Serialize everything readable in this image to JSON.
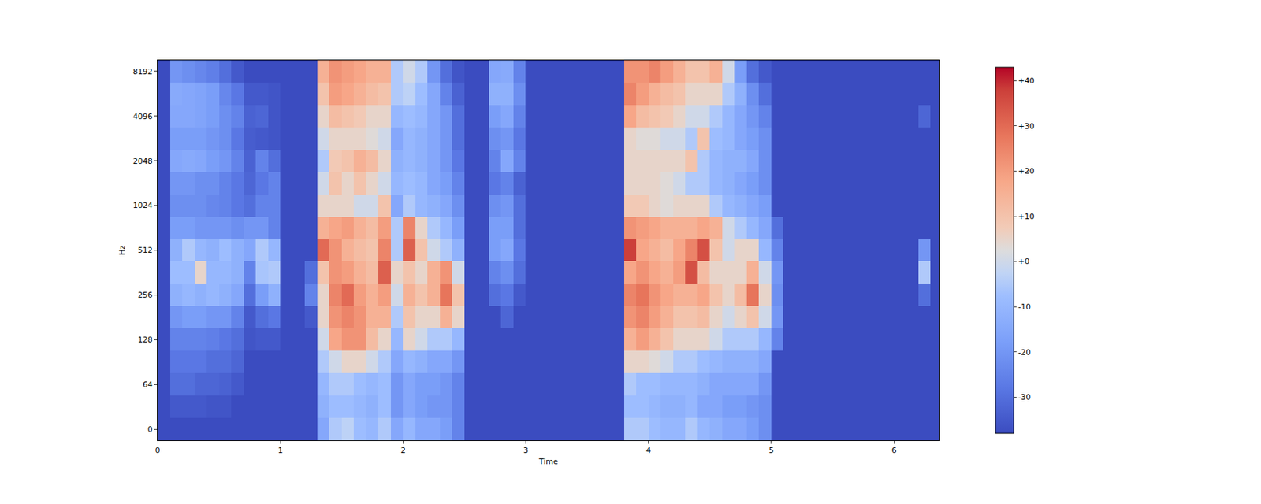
{
  "chart_data": {
    "type": "heatmap",
    "x_label": "Time",
    "y_label": "Hz",
    "xlim": [
      0,
      6.37
    ],
    "xticks": [
      0,
      1,
      2,
      3,
      4,
      5,
      6
    ],
    "yticks": [
      0,
      64,
      128,
      256,
      512,
      1024,
      2048,
      4096,
      8192
    ],
    "x": [
      0.05,
      0.15,
      0.25,
      0.35,
      0.45,
      0.55,
      0.65,
      0.75,
      0.85,
      0.95,
      1.05,
      1.15,
      1.25,
      1.35,
      1.45,
      1.55,
      1.65,
      1.75,
      1.85,
      1.95,
      2.05,
      2.15,
      2.25,
      2.35,
      2.45,
      2.55,
      2.65,
      2.75,
      2.85,
      2.95,
      3.05,
      3.15,
      3.25,
      3.35,
      3.45,
      3.55,
      3.65,
      3.75,
      3.85,
      3.95,
      4.05,
      4.15,
      4.25,
      4.35,
      4.45,
      4.55,
      4.65,
      4.75,
      4.85,
      4.95,
      5.05,
      5.15,
      5.25,
      5.35,
      5.45,
      5.55,
      5.65,
      5.75,
      5.85,
      5.95,
      6.05,
      6.15,
      6.25,
      6.35
    ],
    "y": [
      0,
      32,
      64,
      91,
      128,
      181,
      256,
      362,
      512,
      724,
      1024,
      1448,
      2048,
      2896,
      4096,
      5793,
      8192
    ],
    "cells": [
      [
        -38,
        -38,
        -38,
        -38,
        -38,
        -38,
        -38,
        -38,
        -38,
        -38,
        -38,
        -38,
        -38,
        -38,
        -38,
        -38,
        -38
      ],
      [
        -38,
        -35,
        -30,
        -28,
        -25,
        -20,
        -12,
        -8,
        -12,
        -18,
        -22,
        -20,
        -15,
        -18,
        -15,
        -14,
        -20
      ],
      [
        -38,
        -35,
        -30,
        -28,
        -25,
        -18,
        -10,
        -8,
        -5,
        -18,
        -22,
        -20,
        -14,
        -18,
        -15,
        -15,
        -22
      ],
      [
        -38,
        -35,
        -32,
        -28,
        -25,
        -18,
        -12,
        5,
        -10,
        -20,
        -22,
        -22,
        -15,
        -18,
        -16,
        -16,
        -24
      ],
      [
        -38,
        -36,
        -32,
        -30,
        -26,
        -20,
        -10,
        -10,
        -12,
        -20,
        -24,
        -22,
        -18,
        -20,
        -18,
        -18,
        -26
      ],
      [
        -38,
        -36,
        -33,
        -30,
        -28,
        -20,
        -12,
        -10,
        -8,
        -20,
        -25,
        -25,
        -20,
        -22,
        -22,
        -24,
        -30
      ],
      [
        -38,
        -38,
        -35,
        -32,
        -30,
        -25,
        -15,
        -12,
        -12,
        -22,
        -28,
        -28,
        -25,
        -28,
        -25,
        -28,
        -35
      ],
      [
        -38,
        -38,
        -38,
        -38,
        -36,
        -35,
        -30,
        -25,
        -15,
        -20,
        -30,
        -32,
        -33,
        -34,
        -33,
        -35,
        -38
      ],
      [
        -38,
        -38,
        -38,
        -38,
        -35,
        -30,
        -18,
        -6,
        -5,
        -20,
        -25,
        -28,
        -25,
        -35,
        -32,
        -35,
        -38
      ],
      [
        -38,
        -38,
        -38,
        -38,
        -35,
        -28,
        -12,
        -5,
        -10,
        -25,
        -25,
        -25,
        -30,
        -36,
        -36,
        -36,
        -38
      ],
      [
        -38,
        -38,
        -38,
        -38,
        -38,
        -38,
        -38,
        -38,
        -38,
        -38,
        -38,
        -38,
        -38,
        -38,
        -38,
        -38,
        -38
      ],
      [
        -38,
        -38,
        -38,
        -38,
        -38,
        -38,
        -38,
        -38,
        -38,
        -38,
        -38,
        -38,
        -38,
        -38,
        -38,
        -38,
        -38
      ],
      [
        -38,
        -38,
        -38,
        -38,
        -38,
        -35,
        -25,
        -30,
        -38,
        -38,
        -38,
        -38,
        -38,
        -38,
        -38,
        -38,
        -38
      ],
      [
        -15,
        -12,
        -10,
        -5,
        0,
        5,
        5,
        10,
        30,
        15,
        5,
        0,
        -5,
        0,
        5,
        10,
        15
      ],
      [
        -5,
        -8,
        -5,
        0,
        18,
        22,
        25,
        22,
        22,
        18,
        5,
        10,
        8,
        5,
        12,
        20,
        22
      ],
      [
        -3,
        -8,
        -5,
        5,
        22,
        25,
        30,
        20,
        15,
        20,
        5,
        5,
        10,
        5,
        10,
        18,
        20
      ],
      [
        -8,
        -10,
        -8,
        5,
        22,
        22,
        20,
        15,
        12,
        15,
        0,
        10,
        15,
        5,
        8,
        15,
        18
      ],
      [
        -10,
        -12,
        -10,
        0,
        12,
        15,
        15,
        12,
        10,
        12,
        0,
        5,
        12,
        3,
        5,
        12,
        15
      ],
      [
        -5,
        -8,
        -8,
        -5,
        5,
        15,
        20,
        32,
        25,
        20,
        10,
        0,
        5,
        0,
        5,
        10,
        15
      ],
      [
        -15,
        -20,
        -20,
        -15,
        -10,
        -5,
        0,
        5,
        -5,
        -5,
        -15,
        -10,
        -12,
        -15,
        -10,
        -5,
        -5
      ],
      [
        -10,
        -15,
        -15,
        -10,
        5,
        10,
        15,
        10,
        32,
        25,
        -5,
        -8,
        -10,
        -10,
        -8,
        -3,
        0
      ],
      [
        -15,
        -18,
        -18,
        -12,
        0,
        5,
        10,
        5,
        10,
        5,
        -10,
        -10,
        -12,
        -12,
        -10,
        -8,
        -5
      ],
      [
        -15,
        -20,
        -18,
        -15,
        -5,
        5,
        15,
        15,
        0,
        -5,
        -12,
        -15,
        -15,
        -15,
        -15,
        -15,
        -20
      ],
      [
        -18,
        -20,
        -20,
        -15,
        -5,
        15,
        28,
        22,
        -5,
        -10,
        -15,
        -18,
        -20,
        -20,
        -20,
        -25,
        -30
      ],
      [
        -25,
        -25,
        -25,
        -20,
        -10,
        5,
        10,
        0,
        -12,
        -18,
        -22,
        -25,
        -28,
        -30,
        -30,
        -33,
        -36
      ],
      [
        -38,
        -38,
        -38,
        -38,
        -38,
        -38,
        -38,
        -38,
        -38,
        -38,
        -38,
        -38,
        -38,
        -38,
        -38,
        -38,
        -38
      ],
      [
        -38,
        -38,
        -38,
        -38,
        -38,
        -38,
        -38,
        -38,
        -38,
        -38,
        -38,
        -38,
        -38,
        -38,
        -38,
        -38,
        -38
      ],
      [
        -38,
        -38,
        -38,
        -38,
        -38,
        -38,
        -30,
        -25,
        -18,
        -18,
        -22,
        -28,
        -25,
        -22,
        -18,
        -12,
        -15
      ],
      [
        -38,
        -38,
        -38,
        -38,
        -38,
        -32,
        -28,
        -22,
        -15,
        -18,
        -20,
        -25,
        -15,
        -20,
        -15,
        -12,
        -14
      ],
      [
        -38,
        -38,
        -38,
        -38,
        -38,
        -38,
        -35,
        -30,
        -28,
        -30,
        -30,
        -33,
        -25,
        -28,
        -25,
        -22,
        -25
      ],
      [
        -38,
        -38,
        -38,
        -38,
        -38,
        -38,
        -38,
        -38,
        -38,
        -38,
        -38,
        -38,
        -38,
        -38,
        -38,
        -38,
        -38
      ],
      [
        -38,
        -38,
        -38,
        -38,
        -38,
        -38,
        -38,
        -38,
        -38,
        -38,
        -38,
        -38,
        -38,
        -38,
        -38,
        -38,
        -38
      ],
      [
        -38,
        -38,
        -38,
        -38,
        -38,
        -38,
        -38,
        -38,
        -38,
        -38,
        -38,
        -38,
        -38,
        -38,
        -38,
        -38,
        -38
      ],
      [
        -38,
        -38,
        -38,
        -38,
        -38,
        -38,
        -38,
        -38,
        -38,
        -38,
        -38,
        -38,
        -38,
        -38,
        -38,
        -38,
        -38
      ],
      [
        -38,
        -38,
        -38,
        -38,
        -38,
        -38,
        -38,
        -38,
        -38,
        -38,
        -38,
        -38,
        -38,
        -38,
        -38,
        -38,
        -38
      ],
      [
        -38,
        -38,
        -38,
        -38,
        -38,
        -38,
        -38,
        -38,
        -38,
        -38,
        -38,
        -38,
        -38,
        -38,
        -38,
        -38,
        -38
      ],
      [
        -38,
        -38,
        -38,
        -38,
        -38,
        -38,
        -38,
        -38,
        -38,
        -38,
        -38,
        -38,
        -38,
        -38,
        -38,
        -38,
        -38
      ],
      [
        -38,
        -38,
        -38,
        -38,
        -38,
        -38,
        -38,
        -38,
        -38,
        -38,
        -38,
        -38,
        -38,
        -38,
        -38,
        -38,
        -38
      ],
      [
        -5,
        -8,
        -5,
        5,
        15,
        22,
        25,
        18,
        38,
        22,
        8,
        5,
        5,
        5,
        18,
        25,
        22
      ],
      [
        -5,
        -8,
        -8,
        5,
        20,
        25,
        28,
        22,
        18,
        20,
        8,
        5,
        5,
        3,
        12,
        20,
        22
      ],
      [
        -8,
        -10,
        -8,
        3,
        15,
        20,
        22,
        18,
        15,
        18,
        5,
        5,
        5,
        3,
        10,
        15,
        25
      ],
      [
        -10,
        -12,
        -10,
        0,
        10,
        15,
        18,
        15,
        12,
        15,
        3,
        3,
        5,
        0,
        8,
        12,
        20
      ],
      [
        -10,
        -12,
        -10,
        -5,
        5,
        10,
        15,
        20,
        18,
        15,
        5,
        0,
        5,
        0,
        5,
        10,
        15
      ],
      [
        -5,
        -10,
        -10,
        -5,
        5,
        10,
        15,
        35,
        25,
        15,
        5,
        -5,
        10,
        -5,
        0,
        5,
        10
      ],
      [
        -10,
        -15,
        -12,
        -8,
        5,
        12,
        18,
        12,
        35,
        18,
        5,
        -5,
        -5,
        10,
        0,
        5,
        10
      ],
      [
        -12,
        -15,
        -15,
        -10,
        0,
        5,
        10,
        5,
        10,
        15,
        -5,
        -10,
        -10,
        -8,
        -5,
        5,
        15
      ],
      [
        -15,
        -18,
        -15,
        -12,
        -5,
        0,
        5,
        5,
        0,
        0,
        -10,
        -12,
        -12,
        -10,
        -10,
        -5,
        0
      ],
      [
        -15,
        -18,
        -15,
        -12,
        -5,
        5,
        12,
        5,
        5,
        -5,
        -12,
        -15,
        -12,
        -15,
        -15,
        -12,
        -18
      ],
      [
        -18,
        -20,
        -15,
        -12,
        -5,
        10,
        28,
        15,
        5,
        -10,
        -15,
        -18,
        -15,
        -18,
        -20,
        -22,
        -30
      ],
      [
        -22,
        -22,
        -20,
        -15,
        -10,
        0,
        5,
        0,
        -10,
        -15,
        -18,
        -22,
        -22,
        -22,
        -25,
        -30,
        -35
      ],
      [
        -38,
        -38,
        -38,
        -38,
        -25,
        -20,
        -22,
        -20,
        -25,
        -30,
        -38,
        -38,
        -38,
        -38,
        -38,
        -38,
        -38
      ],
      [
        -38,
        -38,
        -38,
        -38,
        -38,
        -38,
        -38,
        -38,
        -38,
        -38,
        -38,
        -38,
        -38,
        -38,
        -38,
        -38,
        -38
      ],
      [
        -38,
        -38,
        -38,
        -38,
        -38,
        -38,
        -38,
        -38,
        -38,
        -38,
        -38,
        -38,
        -38,
        -38,
        -38,
        -38,
        -38
      ],
      [
        -38,
        -38,
        -38,
        -38,
        -38,
        -38,
        -38,
        -38,
        -38,
        -38,
        -38,
        -38,
        -38,
        -38,
        -38,
        -38,
        -38
      ],
      [
        -38,
        -38,
        -38,
        -38,
        -38,
        -38,
        -38,
        -38,
        -38,
        -38,
        -38,
        -38,
        -38,
        -38,
        -38,
        -38,
        -38
      ],
      [
        -38,
        -38,
        -38,
        -38,
        -38,
        -38,
        -38,
        -38,
        -38,
        -38,
        -38,
        -38,
        -38,
        -38,
        -38,
        -38,
        -38
      ],
      [
        -38,
        -38,
        -38,
        -38,
        -38,
        -38,
        -38,
        -38,
        -38,
        -38,
        -38,
        -38,
        -38,
        -38,
        -38,
        -38,
        -38
      ],
      [
        -38,
        -38,
        -38,
        -38,
        -38,
        -38,
        -38,
        -38,
        -38,
        -38,
        -38,
        -38,
        -38,
        -38,
        -38,
        -38,
        -38
      ],
      [
        -38,
        -38,
        -38,
        -38,
        -38,
        -38,
        -38,
        -38,
        -38,
        -38,
        -38,
        -38,
        -38,
        -38,
        -38,
        -38,
        -38
      ],
      [
        -38,
        -38,
        -38,
        -38,
        -38,
        -38,
        -38,
        -38,
        -38,
        -38,
        -38,
        -38,
        -38,
        -38,
        -38,
        -38,
        -38
      ],
      [
        -38,
        -38,
        -38,
        -38,
        -38,
        -38,
        -38,
        -38,
        -38,
        -38,
        -38,
        -38,
        -38,
        -38,
        -38,
        -38,
        -38
      ],
      [
        -38,
        -38,
        -38,
        -38,
        -38,
        -38,
        -38,
        -38,
        -38,
        -38,
        -38,
        -38,
        -38,
        -38,
        -38,
        -38,
        -38
      ],
      [
        -38,
        -38,
        -38,
        -38,
        -38,
        -38,
        -30,
        -5,
        -20,
        -38,
        -38,
        -38,
        -38,
        -38,
        -32,
        -38,
        -38
      ],
      [
        -38,
        -38,
        -38,
        -38,
        -38,
        -38,
        -38,
        -38,
        -38,
        -38,
        -38,
        -38,
        -38,
        -38,
        -38,
        -38,
        -38
      ]
    ],
    "colorbar": {
      "range": [
        -38,
        43
      ],
      "ticks": [
        -30,
        -20,
        -10,
        {
          "value": 0,
          "label": "+0"
        },
        {
          "value": 10,
          "label": "+10"
        },
        {
          "value": 20,
          "label": "+20"
        },
        {
          "value": 30,
          "label": "+30"
        },
        {
          "value": 40,
          "label": "+40"
        }
      ]
    }
  }
}
